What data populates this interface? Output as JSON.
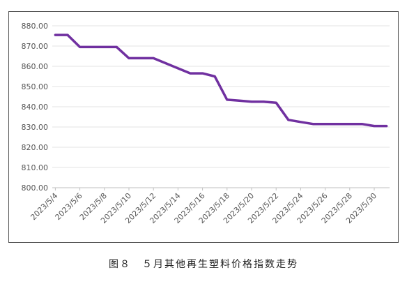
{
  "caption": "图８　５月其他再生塑料价格指数走势",
  "chart_data": {
    "type": "line",
    "title": "",
    "xlabel": "",
    "ylabel": "",
    "ylim": [
      800,
      880
    ],
    "yticks": [
      "880.00",
      "870.00",
      "860.00",
      "850.00",
      "840.00",
      "830.00",
      "820.00",
      "810.00",
      "800.00"
    ],
    "xticks": [
      "2023/5/4",
      "2023/5/6",
      "2023/5/8",
      "2023/5/10",
      "2023/5/12",
      "2023/5/14",
      "2023/5/16",
      "2023/5/18",
      "2023/5/20",
      "2023/5/22",
      "2023/5/24",
      "2023/5/26",
      "2023/5/28",
      "2023/5/30"
    ],
    "grid": true,
    "legend": "none",
    "series": [
      {
        "color": "#7030a0",
        "x": [
          "2023/5/4",
          "2023/5/5",
          "2023/5/6",
          "2023/5/7",
          "2023/5/8",
          "2023/5/9",
          "2023/5/10",
          "2023/5/11",
          "2023/5/12",
          "2023/5/13",
          "2023/5/14",
          "2023/5/15",
          "2023/5/16",
          "2023/5/17",
          "2023/5/18",
          "2023/5/19",
          "2023/5/20",
          "2023/5/21",
          "2023/5/22",
          "2023/5/23",
          "2023/5/24",
          "2023/5/25",
          "2023/5/26",
          "2023/5/27",
          "2023/5/28",
          "2023/5/29",
          "2023/5/30",
          "2023/5/31"
        ],
        "values": [
          875.5,
          875.5,
          869.5,
          869.5,
          869.5,
          869.5,
          864,
          864,
          864,
          861.5,
          859,
          856.5,
          856.5,
          855,
          843.5,
          843,
          842.5,
          842.5,
          842,
          833.5,
          832.5,
          831.5,
          831.5,
          831.5,
          831.5,
          831.5,
          830.5,
          830.5
        ]
      }
    ]
  }
}
